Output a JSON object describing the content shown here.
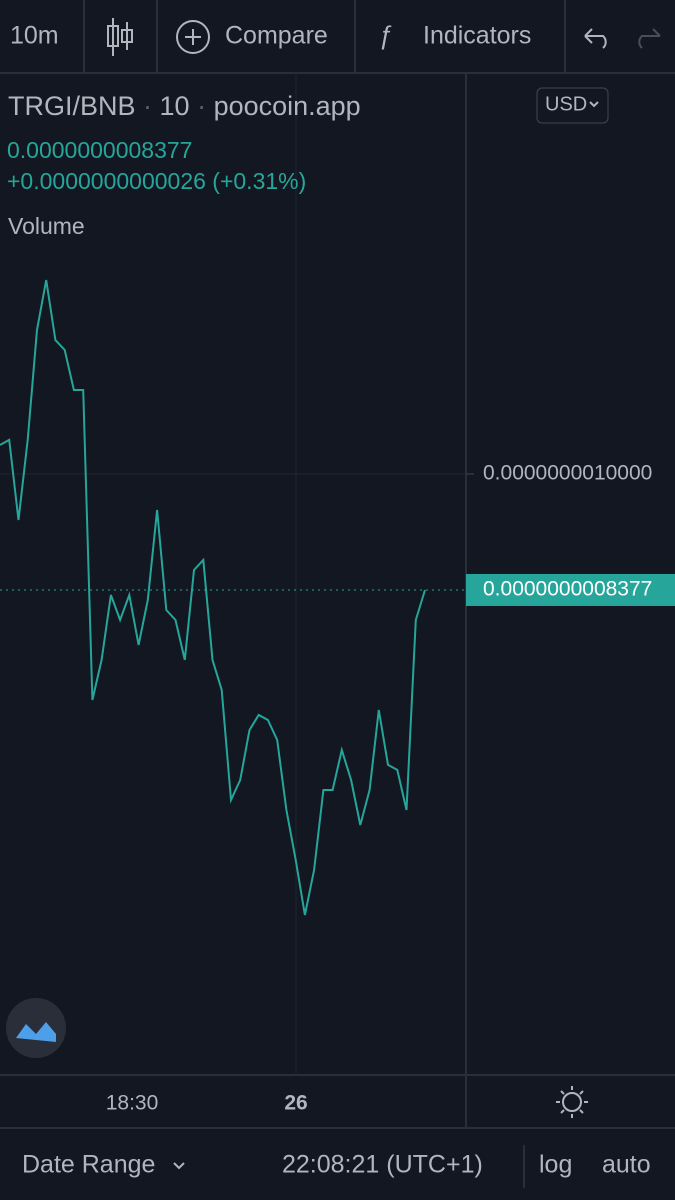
{
  "toolbar": {
    "interval": "10m",
    "compare": "Compare",
    "indicators": "Indicators"
  },
  "legend": {
    "symbol": "TRGI/BNB",
    "interval": "10",
    "source": "poocoin.app",
    "price": "0.0000000008377",
    "change": "+0.0000000000026 (+0.31%)",
    "volume": "Volume"
  },
  "currency": "USD",
  "chart_data": {
    "type": "line",
    "color": "#26a69a",
    "values": [
      1.0406e-09,
      1.0476e-09,
      9.356e-10,
      1.0476e-09,
      1.2015e-09,
      1.2714e-09,
      1.1875e-09,
      1.1735e-09,
      1.1175e-09,
      1.1175e-09,
      6.838e-10,
      7.398e-10,
      8.307e-10,
      7.957e-10,
      8.307e-10,
      7.608e-10,
      8.237e-10,
      9.496e-10,
      8.097e-10,
      7.957e-10,
      7.398e-10,
      8.657e-10,
      8.797e-10,
      7.398e-10,
      6.978e-10,
      5.439e-10,
      5.719e-10,
      6.418e-10,
      6.628e-10,
      6.558e-10,
      6.278e-10,
      5.299e-10,
      4.6e-10,
      3.83e-10,
      4.46e-10,
      5.579e-10,
      5.579e-10,
      6.138e-10,
      5.719e-10,
      5.089e-10,
      5.579e-10,
      6.698e-10,
      5.929e-10,
      5.859e-10,
      5.299e-10,
      7.957e-10,
      8.377e-10
    ],
    "ylim": [
      1.591e-10,
      1.5582e-09
    ],
    "yticks": [
      {
        "value": 1e-09,
        "label": "0.0000000010000"
      }
    ],
    "last_price": {
      "value": 8.377e-10,
      "label": "0.0000000008377"
    }
  },
  "time_labels": [
    "18:30",
    "26"
  ],
  "footer": {
    "date_range": "Date Range",
    "time": "22:08:21 (UTC+1)",
    "log": "log",
    "auto": "auto"
  }
}
